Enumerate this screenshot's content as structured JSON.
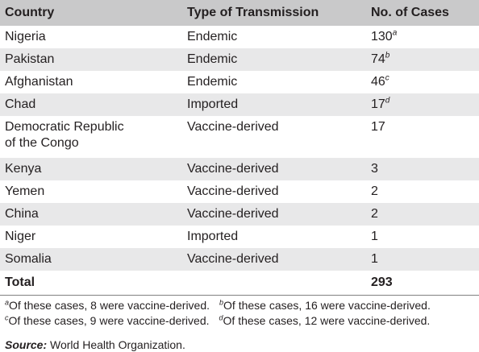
{
  "headers": [
    "Country",
    "Type of Transmission",
    "No. of Cases"
  ],
  "rows": [
    {
      "country": "Nigeria",
      "type": "Endemic",
      "cases": "130",
      "sup": "a"
    },
    {
      "country": "Pakistan",
      "type": "Endemic",
      "cases": "74",
      "sup": "b"
    },
    {
      "country": "Afghanistan",
      "type": "Endemic",
      "cases": "46",
      "sup": "c"
    },
    {
      "country": "Chad",
      "type": "Imported",
      "cases": "17",
      "sup": "d"
    },
    {
      "country": "Democratic Republic\nof the Congo",
      "type": "Vaccine-derived",
      "cases": "17",
      "sup": ""
    },
    {
      "country": "Kenya",
      "type": "Vaccine-derived",
      "cases": "3",
      "sup": ""
    },
    {
      "country": "Yemen",
      "type": "Vaccine-derived",
      "cases": "2",
      "sup": ""
    },
    {
      "country": "China",
      "type": "Vaccine-derived",
      "cases": "2",
      "sup": ""
    },
    {
      "country": "Niger",
      "type": "Imported",
      "cases": "1",
      "sup": ""
    },
    {
      "country": "Somalia",
      "type": "Vaccine-derived",
      "cases": "1",
      "sup": ""
    }
  ],
  "total": {
    "label": "Total",
    "cases": "293"
  },
  "footnotes": [
    {
      "mark": "a",
      "text": "Of these cases, 8 were vaccine-derived."
    },
    {
      "mark": "b",
      "text": "Of these cases, 16 were vaccine-derived."
    },
    {
      "mark": "c",
      "text": "Of these cases, 9 were vaccine-derived."
    },
    {
      "mark": "d",
      "text": "Of these cases, 12 were vaccine-derived."
    }
  ],
  "source": {
    "label": "Source:",
    "text": " World Health Organization."
  }
}
